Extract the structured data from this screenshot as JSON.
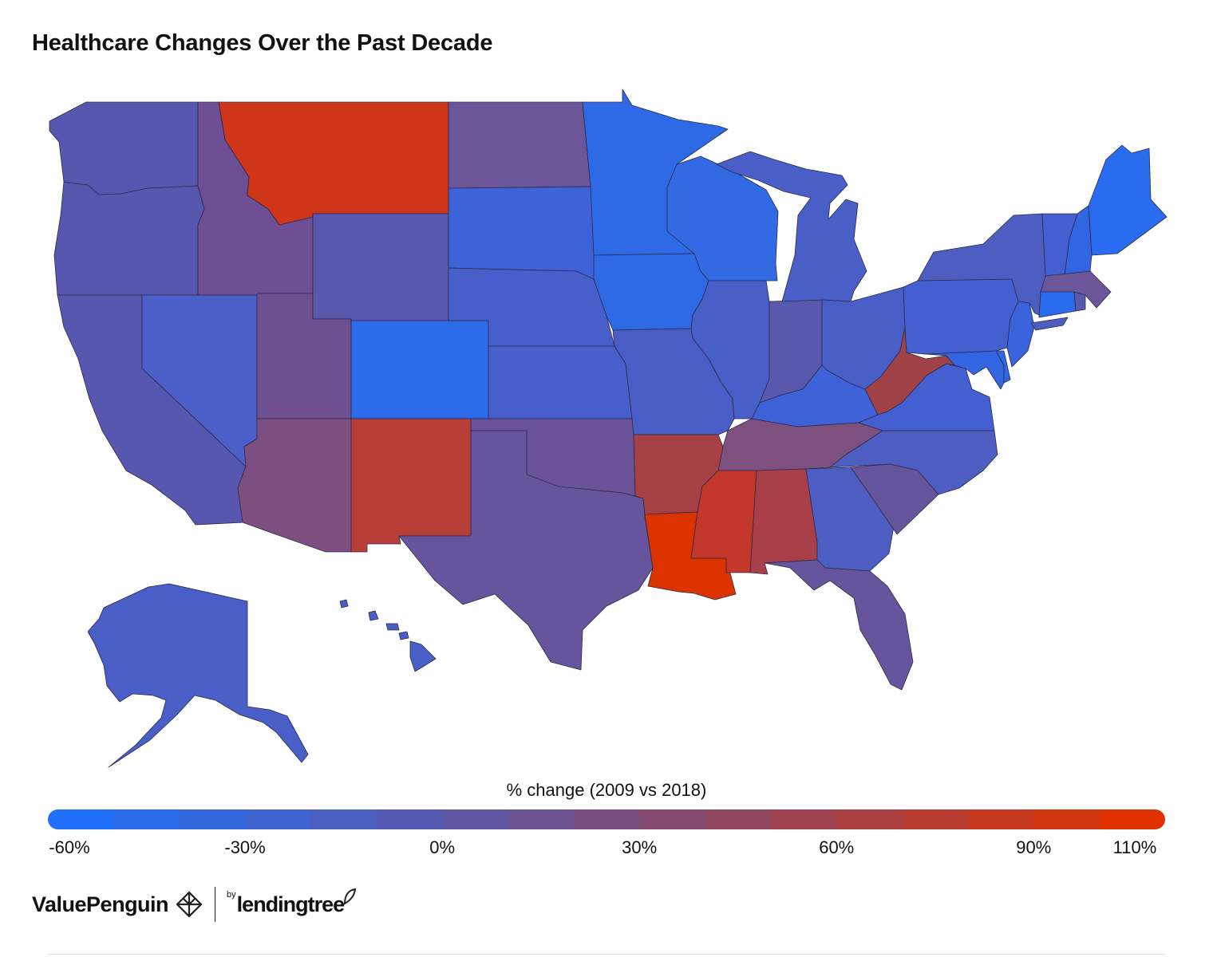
{
  "title": "Healthcare Changes Over the Past Decade",
  "legend": {
    "title": "% change (2009 vs 2018)",
    "ticks": [
      "-60%",
      "-30%",
      "0%",
      "30%",
      "60%",
      "90%",
      "110%"
    ],
    "tick_values": [
      -60,
      -30,
      0,
      30,
      60,
      90,
      110
    ],
    "min": -60,
    "max": 110,
    "low_color": "#1f6ffb",
    "mid_color": "#5a58a8",
    "high_color": "#e03100"
  },
  "branding": {
    "valuepenguin": "ValuePenguin",
    "by": "by",
    "lendingtree": "lendingtree"
  },
  "icons": {
    "valuepenguin_logo": "valuepenguin-logo-icon",
    "lendingtree_leaf": "leaf-icon"
  },
  "state_colors": {
    "WA": "#5757b0",
    "OR": "#5757b0",
    "CA": "#5757b0",
    "NV": "#4a5fca",
    "ID": "#6e4f95",
    "MT": "#d0361a",
    "WY": "#5a58ac",
    "UT": "#6e5090",
    "AZ": "#7d4f80",
    "CO": "#2c6bea",
    "NM": "#b83e38",
    "ND": "#6b569a",
    "SD": "#3e62d8",
    "NE": "#475fcb",
    "KS": "#475fcb",
    "OK": "#6a5398",
    "TX": "#66559c",
    "MN": "#2f6ae6",
    "IA": "#2f6ae6",
    "MO": "#4a5dc6",
    "AR": "#a84146",
    "LA": "#dd3300",
    "WI": "#326ae4",
    "IL": "#485ec8",
    "MI": "#4a5ec8",
    "IN": "#5a58ad",
    "OH": "#4a5ec8",
    "KY": "#3e62d8",
    "TN": "#7d507f",
    "MS": "#c3382b",
    "AL": "#a94049",
    "GA": "#4e5dc2",
    "FL": "#66559c",
    "SC": "#66559c",
    "NC": "#4e5dc2",
    "VA": "#4460d0",
    "WV": "#a14148",
    "PA": "#4460d0",
    "NY": "#4e5dc2",
    "VT": "#4460d0",
    "NH": "#3366e2",
    "ME": "#2a6cf0",
    "MA": "#6b569a",
    "RI": "#5a58ad",
    "CT": "#2a6cf0",
    "NJ": "#3a64dc",
    "DE": "#3366e2",
    "MD": "#3366e2",
    "AK": "#4a5ec8",
    "HI": "#4a5ec8"
  }
}
